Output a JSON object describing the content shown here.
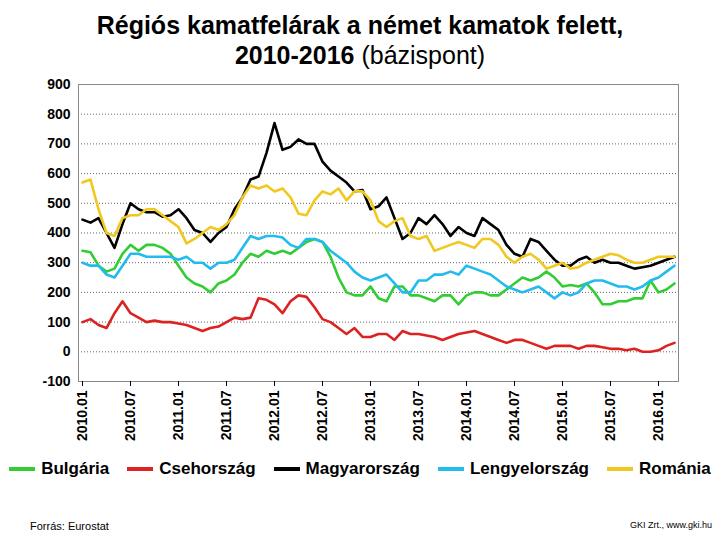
{
  "chart_data": {
    "type": "line",
    "title": "Régiós kamatfelárak a német kamatok felett,\n2010-2016",
    "subtitle": "(bázispont)",
    "source": "Forrás: Eurostat",
    "credit": "GKI Zrt., www.gki.hu",
    "categories": [
      "2010.01",
      null,
      null,
      null,
      null,
      null,
      "2010.07",
      null,
      null,
      null,
      null,
      null,
      "2011.01",
      null,
      null,
      null,
      null,
      null,
      "2011.07",
      null,
      null,
      null,
      null,
      null,
      "2012.01",
      null,
      null,
      null,
      null,
      null,
      "2012.07",
      null,
      null,
      null,
      null,
      null,
      "2013.01",
      null,
      null,
      null,
      null,
      null,
      "2013.07",
      null,
      null,
      null,
      null,
      null,
      "2014.01",
      null,
      null,
      null,
      null,
      null,
      "2014.07",
      null,
      null,
      null,
      null,
      null,
      "2015.01",
      null,
      null,
      null,
      null,
      null,
      "2015.07",
      null,
      null,
      null,
      null,
      null,
      "2016.01",
      null,
      null
    ],
    "series": [
      {
        "name": "Bulgária",
        "color": "#33cc33",
        "values": [
          340,
          335,
          290,
          270,
          280,
          330,
          360,
          340,
          360,
          360,
          350,
          330,
          290,
          250,
          230,
          220,
          200,
          230,
          240,
          260,
          300,
          330,
          320,
          340,
          330,
          340,
          330,
          350,
          370,
          380,
          370,
          320,
          250,
          200,
          190,
          190,
          220,
          180,
          170,
          220,
          220,
          190,
          190,
          180,
          170,
          190,
          190,
          160,
          190,
          200,
          200,
          190,
          190,
          210,
          230,
          250,
          240,
          250,
          270,
          250,
          220,
          225,
          220,
          230,
          200,
          160,
          160,
          170,
          170,
          180,
          180,
          240,
          200,
          210,
          230
        ]
      },
      {
        "name": "Csehország",
        "color": "#dd2222",
        "values": [
          100,
          110,
          90,
          80,
          130,
          170,
          130,
          115,
          100,
          105,
          100,
          100,
          95,
          90,
          80,
          70,
          80,
          85,
          100,
          115,
          110,
          115,
          180,
          175,
          160,
          130,
          170,
          190,
          185,
          150,
          110,
          100,
          80,
          60,
          80,
          50,
          50,
          60,
          60,
          40,
          70,
          60,
          60,
          55,
          50,
          40,
          50,
          60,
          65,
          70,
          60,
          50,
          40,
          30,
          40,
          40,
          30,
          20,
          10,
          20,
          20,
          20,
          10,
          20,
          20,
          15,
          10,
          10,
          5,
          10,
          0,
          0,
          5,
          20,
          30
        ]
      },
      {
        "name": "Magyarország",
        "color": "#000000",
        "values": [
          445,
          435,
          450,
          400,
          350,
          430,
          500,
          480,
          470,
          470,
          455,
          460,
          480,
          450,
          410,
          400,
          370,
          400,
          420,
          480,
          520,
          580,
          590,
          670,
          770,
          680,
          690,
          715,
          700,
          700,
          640,
          610,
          590,
          570,
          540,
          545,
          480,
          490,
          520,
          450,
          380,
          400,
          450,
          430,
          460,
          430,
          390,
          420,
          400,
          390,
          450,
          430,
          410,
          360,
          330,
          320,
          380,
          370,
          340,
          310,
          290,
          290,
          310,
          320,
          300,
          310,
          300,
          300,
          290,
          280,
          285,
          290,
          300,
          310,
          320
        ]
      },
      {
        "name": "Lengyelország",
        "color": "#22bbee",
        "values": [
          300,
          290,
          290,
          260,
          250,
          290,
          330,
          330,
          320,
          320,
          320,
          320,
          310,
          320,
          300,
          300,
          280,
          300,
          300,
          310,
          350,
          390,
          380,
          390,
          390,
          385,
          360,
          350,
          380,
          380,
          370,
          340,
          320,
          300,
          270,
          250,
          240,
          250,
          260,
          230,
          200,
          200,
          240,
          240,
          260,
          260,
          270,
          260,
          290,
          280,
          270,
          260,
          240,
          220,
          210,
          200,
          210,
          220,
          200,
          180,
          200,
          190,
          200,
          230,
          240,
          240,
          230,
          220,
          220,
          210,
          220,
          240,
          250,
          270,
          290
        ]
      },
      {
        "name": "Románia",
        "color": "#f0c820",
        "values": [
          570,
          580,
          480,
          400,
          390,
          450,
          460,
          460,
          480,
          480,
          460,
          440,
          420,
          365,
          380,
          400,
          420,
          410,
          430,
          460,
          520,
          560,
          550,
          560,
          540,
          550,
          520,
          465,
          460,
          510,
          540,
          530,
          550,
          510,
          540,
          540,
          510,
          440,
          420,
          440,
          450,
          390,
          380,
          390,
          340,
          350,
          360,
          370,
          360,
          350,
          380,
          380,
          360,
          320,
          300,
          320,
          330,
          310,
          280,
          290,
          300,
          280,
          285,
          300,
          310,
          320,
          330,
          325,
          310,
          300,
          300,
          310,
          320,
          320,
          320
        ]
      }
    ],
    "ylim": [
      -100,
      900
    ],
    "yticks": [
      -100,
      0,
      100,
      200,
      300,
      400,
      500,
      600,
      700,
      800,
      900
    ],
    "grid": true,
    "legend": "bottom"
  }
}
